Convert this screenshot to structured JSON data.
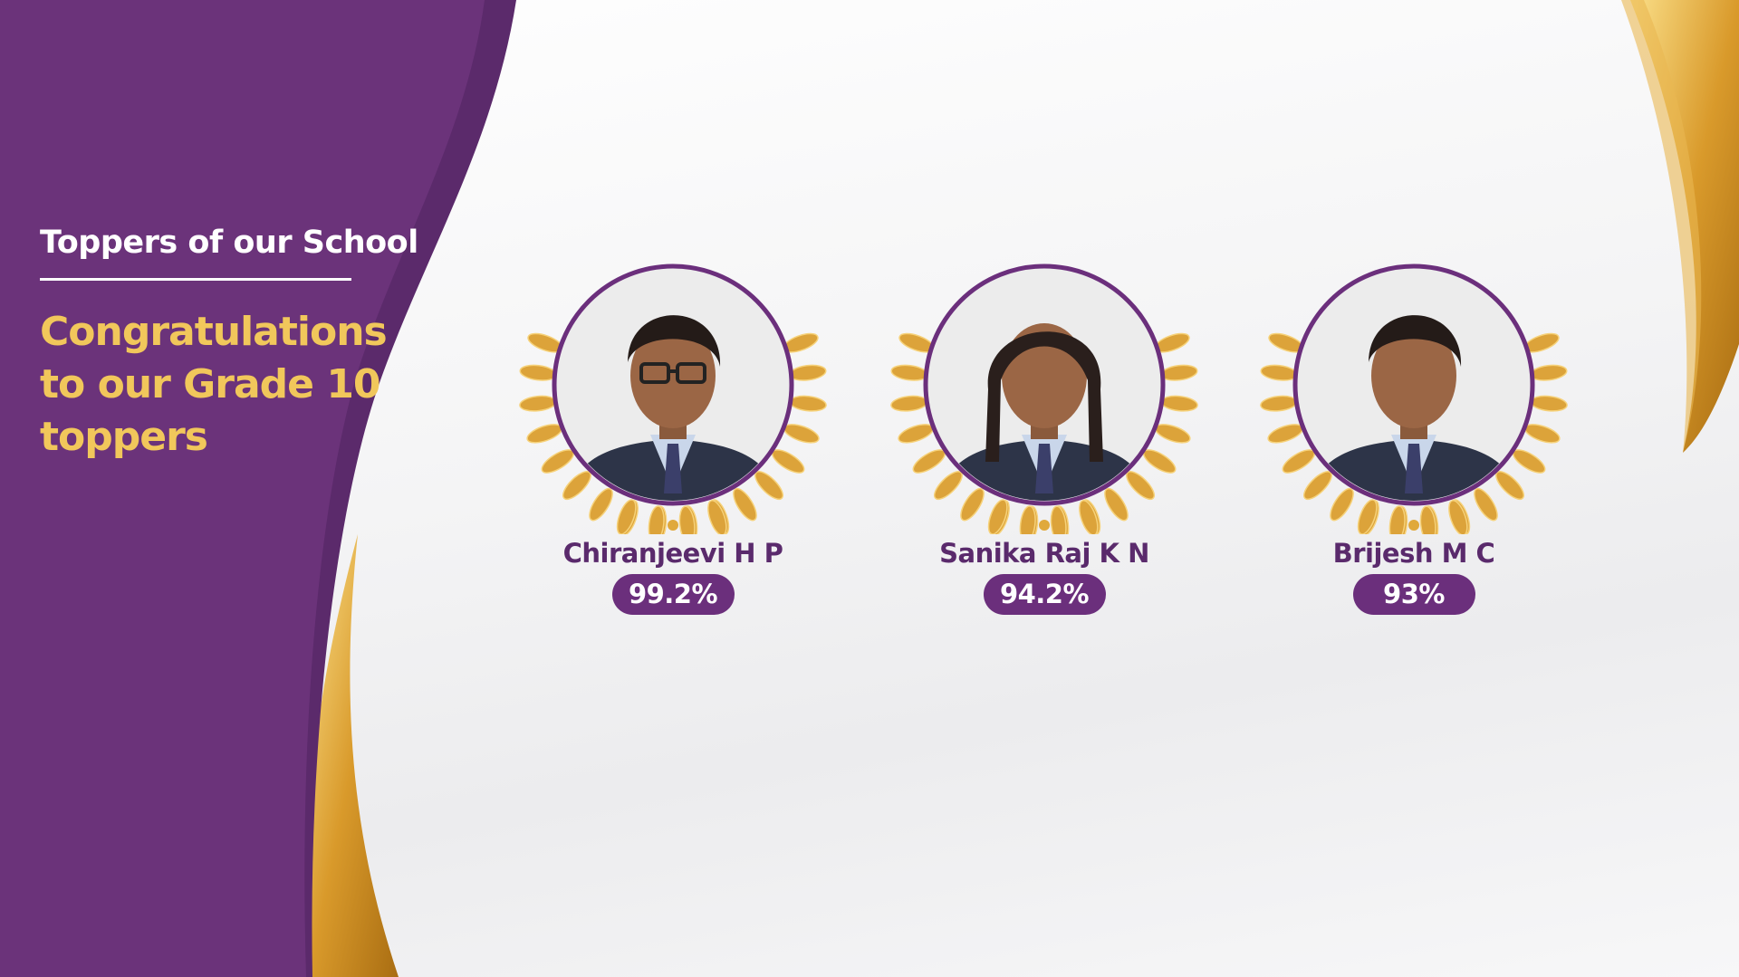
{
  "header": {
    "title": "Toppers of our School",
    "subtitle": "Congratulations to our Grade 10 toppers"
  },
  "colors": {
    "purple": "#6b337a",
    "gold": "#f1c75b",
    "name": "#5a2a6c",
    "pill": "#6b2f7c"
  },
  "toppers": [
    {
      "name": "Chiranjeevi H P",
      "score": "99.2%",
      "glasses": true,
      "hair": "short"
    },
    {
      "name": "Sanika Raj K N",
      "score": "94.2%",
      "glasses": false,
      "hair": "long"
    },
    {
      "name": "Brijesh M C",
      "score": "93%",
      "glasses": false,
      "hair": "short"
    }
  ]
}
